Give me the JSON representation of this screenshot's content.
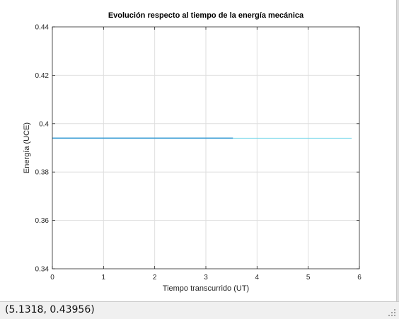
{
  "status_bar": {
    "coordinates": "(5.1318, 0.43956)"
  },
  "colors": {
    "series": "#3f9fd6",
    "series_tail": "#6fd6ea",
    "grid": "#dedede",
    "axes": "#262626"
  },
  "chart_data": {
    "type": "line",
    "title": "Evolución respecto al tiempo de la energía mecánica",
    "xlabel": "Tiempo transcurrido (UT)",
    "ylabel": "Energía (UCE)",
    "xlim": [
      0,
      6
    ],
    "ylim": [
      0.34,
      0.44
    ],
    "xticks": [
      0,
      1,
      2,
      3,
      4,
      5,
      6
    ],
    "yticks": [
      0.34,
      0.36,
      0.38,
      0.4,
      0.42,
      0.44
    ],
    "xtick_labels": [
      "0",
      "1",
      "2",
      "3",
      "4",
      "5",
      "6"
    ],
    "ytick_labels": [
      "0.34",
      "0.36",
      "0.38",
      "0.4",
      "0.42",
      "0.44"
    ],
    "grid": true,
    "series": [
      {
        "x": [
          0,
          3.53
        ],
        "values": [
          0.394,
          0.394
        ]
      },
      {
        "x": [
          3.53,
          5.85
        ],
        "values": [
          0.394,
          0.394
        ]
      }
    ]
  }
}
